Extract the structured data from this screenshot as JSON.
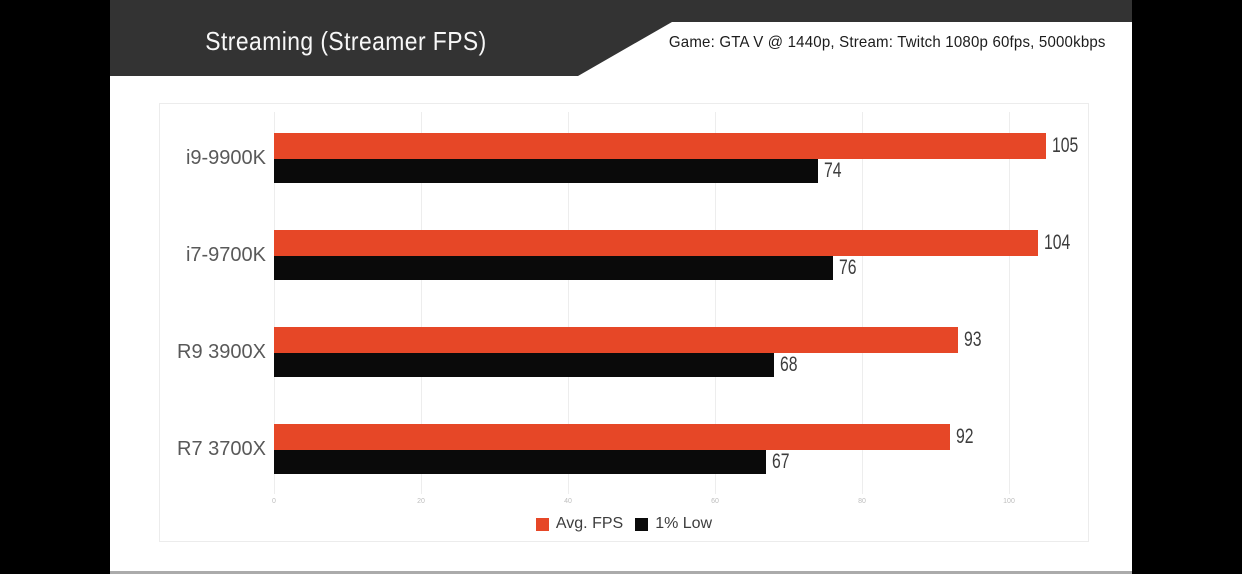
{
  "header": {
    "title": "Streaming (Streamer FPS)",
    "subtitle": "Game: GTA V @ 1440p, Stream: Twitch 1080p 60fps, 5000kbps"
  },
  "chart_data": {
    "type": "bar",
    "orientation": "horizontal",
    "title": "Streaming (Streamer FPS)",
    "subtitle": "Game: GTA V @ 1440p, Stream: Twitch 1080p 60fps, 5000kbps",
    "categories": [
      "i9-9900K",
      "i7-9700K",
      "R9 3900X",
      "R7 3700X"
    ],
    "series": [
      {
        "name": "Avg. FPS",
        "color": "#e64727",
        "values": [
          105,
          104,
          93,
          92
        ]
      },
      {
        "name": "1% Low",
        "color": "#0a0a0a",
        "values": [
          74,
          76,
          68,
          67
        ]
      }
    ],
    "x_ticks": [
      0,
      20,
      40,
      60,
      80,
      100
    ],
    "xlim": [
      0,
      111
    ],
    "grid": true,
    "legend_position": "bottom",
    "value_labels": true
  },
  "colors": {
    "banner": "#333333",
    "accent_orange": "#e64727",
    "bar_black": "#0a0a0a",
    "page_background": "#000000",
    "content_background": "#ffffff"
  }
}
